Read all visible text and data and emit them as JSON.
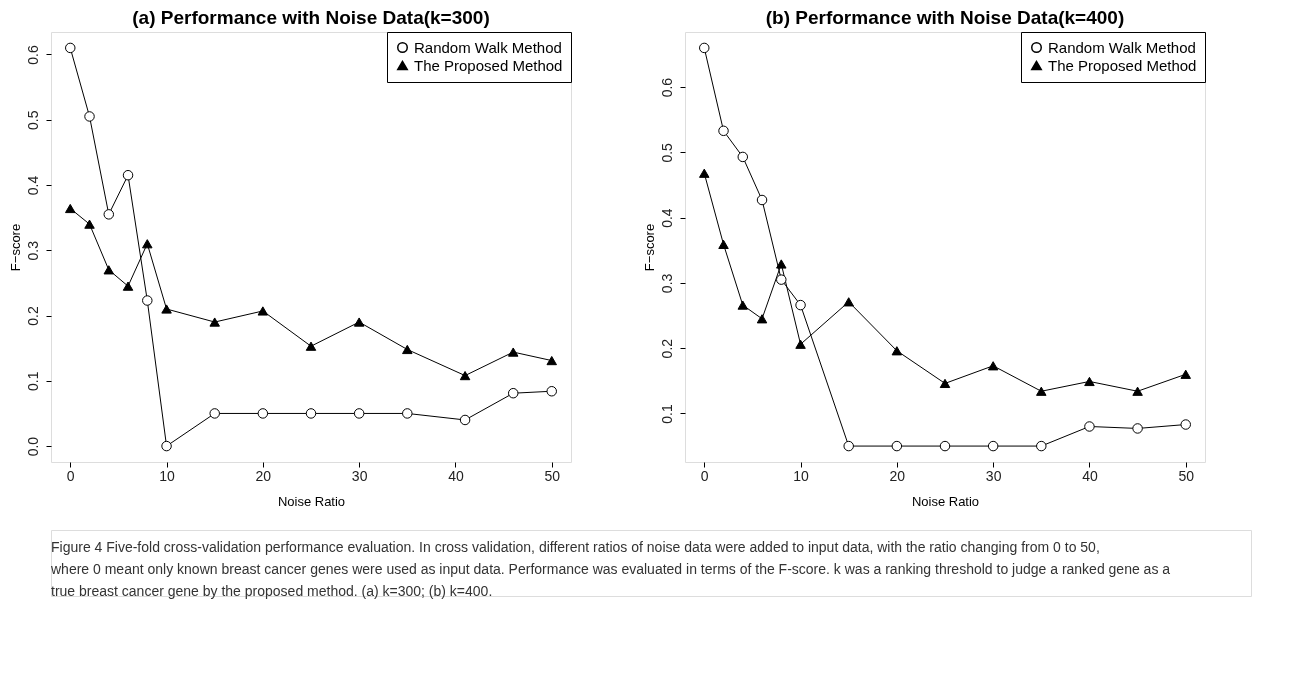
{
  "chart_data": [
    {
      "type": "line",
      "title": "(a) Performance with Noise Data(k=300)",
      "xlabel": "Noise Ratio",
      "ylabel": "F−score",
      "xlim": [
        -2,
        52
      ],
      "xticks": [
        0,
        10,
        20,
        30,
        40,
        50
      ],
      "ylim": [
        -0.0244,
        0.6344
      ],
      "yticks": [
        {
          "value": 0,
          "label": "0.0"
        },
        0.1,
        0.2,
        0.3,
        0.4,
        0.5,
        0.6
      ],
      "grid": false,
      "legend": "top right",
      "line_style": "solid",
      "series": [
        {
          "name": "Random Walk Method",
          "color": "#000000",
          "marker": "circle",
          "x": [
            0,
            2,
            4,
            6,
            8,
            10,
            15,
            20,
            25,
            30,
            35,
            41,
            46,
            50
          ],
          "values": [
            0.61,
            0.505,
            0.355,
            0.415,
            0.223,
            0.0,
            0.05,
            0.05,
            0.05,
            0.05,
            0.05,
            0.04,
            0.081,
            0.084
          ]
        },
        {
          "name": "The Proposed Method",
          "color": "#000000",
          "marker": "triangle",
          "x": [
            0,
            2,
            4,
            6,
            8,
            10,
            15,
            20,
            25,
            30,
            35,
            41,
            46,
            50
          ],
          "values": [
            0.364,
            0.34,
            0.27,
            0.245,
            0.31,
            0.21,
            0.19,
            0.207,
            0.153,
            0.19,
            0.148,
            0.108,
            0.144,
            0.131
          ]
        }
      ],
      "annotations": [
        "Figure 4 Five-fold cross-validation performance evaluation. In cross validation, different ratios of noise data were added to input data, with the ratio changing from 0 to 50, where 0 meant only known breast cancer genes were used as input data. Performance was evaluated in terms of the F-score. k was a ranking threshold to judge a ranked gene as a true breast cancer gene by the proposed method. (a) k=300; (b) k=400."
      ]
    },
    {
      "type": "line",
      "title": "(b) Performance with Noise Data(k=400)",
      "xlabel": "Noise Ratio",
      "ylabel": "F−score",
      "xlim": [
        -2,
        52
      ],
      "xticks": [
        0,
        10,
        20,
        30,
        40,
        50
      ],
      "ylim": [
        0.0256,
        0.6844
      ],
      "yticks": [
        0.1,
        0.2,
        0.3,
        0.4,
        0.5,
        0.6
      ],
      "grid": false,
      "legend": "top right",
      "line_style": "solid",
      "series": [
        {
          "name": "Random Walk Method",
          "color": "#000000",
          "marker": "circle",
          "x": [
            0,
            2,
            4,
            6,
            8,
            10,
            15,
            20,
            25,
            30,
            35,
            40,
            45,
            50
          ],
          "values": [
            0.66,
            0.533,
            0.493,
            0.427,
            0.305,
            0.266,
            0.05,
            0.05,
            0.05,
            0.05,
            0.05,
            0.08,
            0.077,
            0.083
          ]
        },
        {
          "name": "The Proposed Method",
          "color": "#000000",
          "marker": "triangle",
          "x": [
            0,
            2,
            4,
            6,
            8,
            10,
            15,
            20,
            25,
            30,
            35,
            40,
            45,
            50
          ],
          "values": [
            0.468,
            0.359,
            0.266,
            0.245,
            0.329,
            0.206,
            0.271,
            0.196,
            0.146,
            0.173,
            0.134,
            0.149,
            0.134,
            0.16
          ]
        }
      ]
    }
  ]
}
